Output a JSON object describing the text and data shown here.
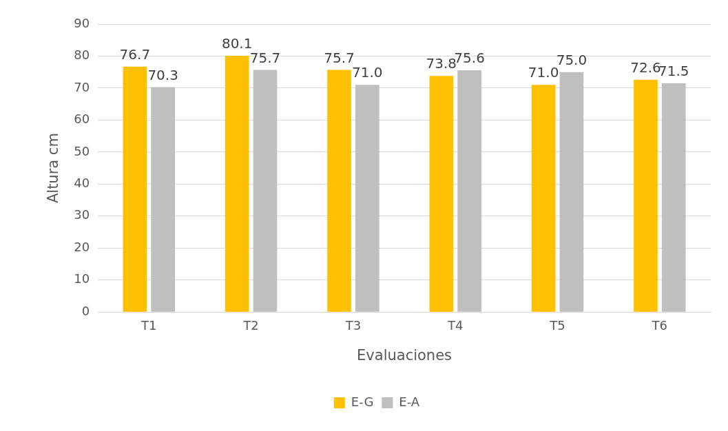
{
  "chart_data": {
    "type": "bar",
    "xlabel": "Evaluaciones",
    "ylabel": "Altura cm",
    "categories": [
      "T1",
      "T2",
      "T3",
      "T4",
      "T5",
      "T6"
    ],
    "series": [
      {
        "name": "E-G",
        "color": "#ffc000",
        "values": [
          76.7,
          80.1,
          75.7,
          73.8,
          71.0,
          72.6
        ],
        "value_labels": [
          "76.7",
          "80.1",
          "75.7",
          "73.8",
          "71.0",
          "72.6"
        ]
      },
      {
        "name": "E-A",
        "color": "#bfbfbf",
        "values": [
          70.3,
          75.7,
          71.0,
          75.6,
          75.0,
          71.5
        ],
        "value_labels": [
          "70.3",
          "75.7",
          "71.0",
          "75.6",
          "75.0",
          "71.5"
        ]
      }
    ],
    "ylim": [
      0,
      90
    ],
    "yticks": [
      0,
      10,
      20,
      30,
      40,
      50,
      60,
      70,
      80,
      90
    ],
    "grid": "y",
    "legend": "bottom"
  }
}
